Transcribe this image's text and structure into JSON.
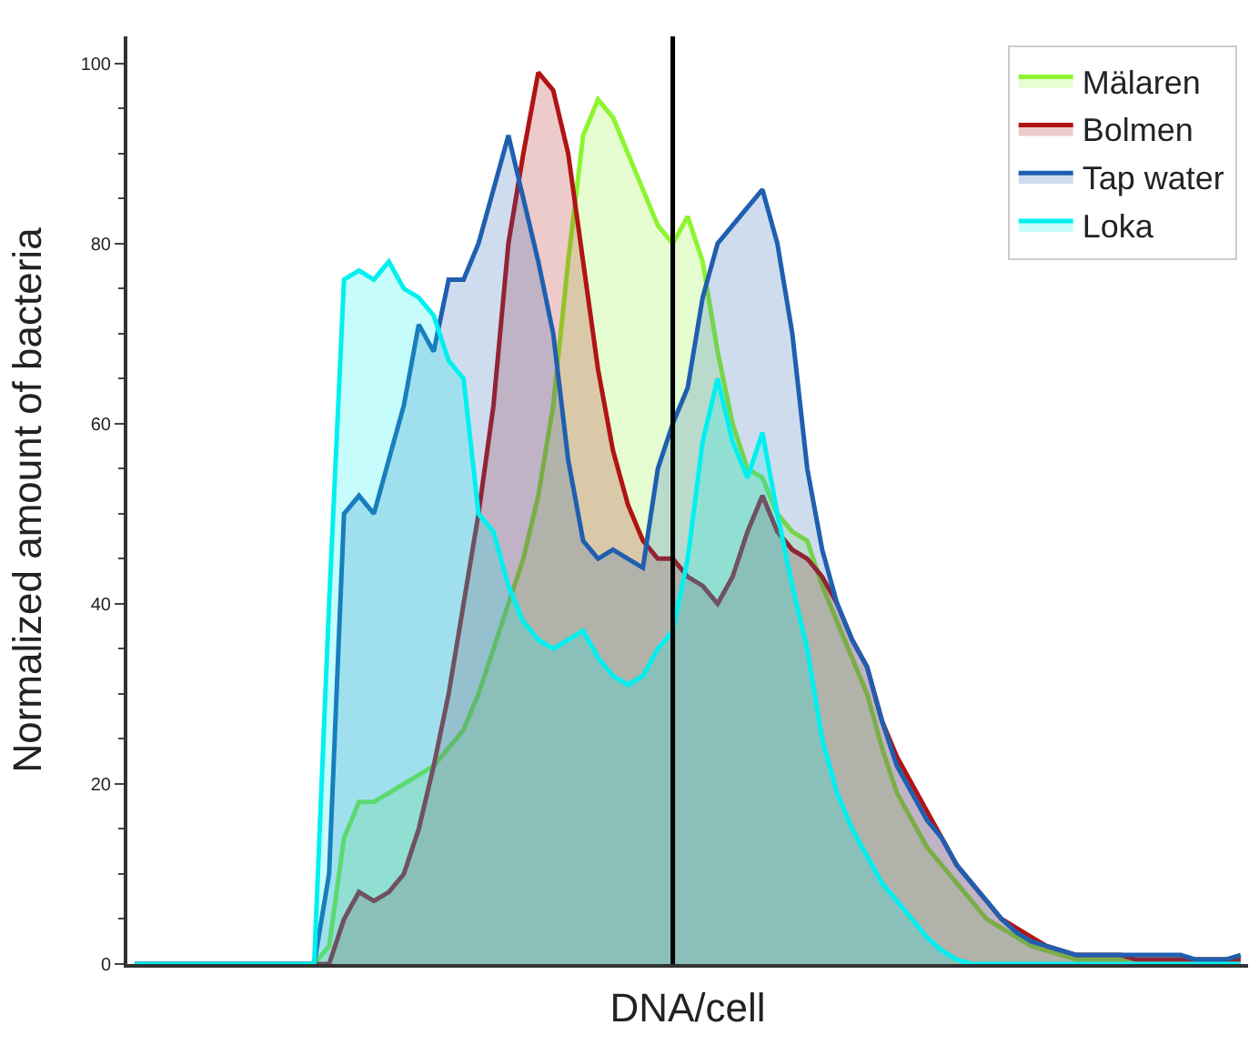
{
  "chart_data": {
    "type": "area",
    "xlabel": "DNA/cell",
    "ylabel": "Normalized amount of bacteria",
    "categories": [
      null,
      null,
      null,
      null,
      null,
      null,
      null,
      null,
      null,
      null,
      null,
      null,
      null,
      null,
      null,
      null,
      null,
      null,
      null,
      null,
      null,
      null,
      null,
      null,
      null,
      null,
      null,
      null,
      null,
      null,
      null,
      null,
      null,
      null,
      null,
      null,
      null,
      null,
      null,
      null,
      null,
      null,
      null,
      null,
      null,
      null,
      null,
      null,
      null,
      null,
      null,
      null,
      null,
      null,
      null,
      null,
      null,
      null,
      null,
      null,
      null,
      null,
      null,
      null,
      null,
      null,
      null,
      null,
      null,
      null,
      null,
      null,
      null,
      null,
      null
    ],
    "series": [
      {
        "name": "Mälaren",
        "color": "#8cf530",
        "values": [
          0,
          0,
          0,
          0,
          0,
          0,
          0,
          0,
          0,
          0,
          0,
          0,
          0,
          2,
          14,
          18,
          18,
          19,
          20,
          21,
          22,
          24,
          26,
          30,
          35,
          40,
          45,
          52,
          62,
          78,
          92,
          96,
          94,
          90,
          86,
          82,
          80,
          83,
          78,
          68,
          60,
          55,
          54,
          50,
          48,
          47,
          42,
          38,
          34,
          30,
          24,
          19,
          16,
          13,
          11,
          9,
          7,
          5,
          4,
          3,
          2,
          1.5,
          1,
          0.5,
          0.5,
          0.5,
          0.5,
          0.5,
          0.5,
          0.5,
          0.5,
          0.5,
          0.5,
          0.5,
          1
        ]
      },
      {
        "name": "Bolmen",
        "color": "#b01414",
        "values": [
          0,
          0,
          0,
          0,
          0,
          0,
          0,
          0,
          0,
          0,
          0,
          0,
          0,
          0,
          5,
          8,
          7,
          8,
          10,
          15,
          22,
          30,
          40,
          50,
          62,
          80,
          90,
          99,
          97,
          90,
          78,
          66,
          57,
          51,
          47,
          45,
          45,
          43,
          42,
          40,
          43,
          48,
          52,
          48,
          46,
          45,
          43,
          40,
          36,
          33,
          27,
          23,
          20,
          17,
          14,
          11,
          9,
          7,
          5,
          4,
          3,
          2,
          1.5,
          1,
          1,
          1,
          1,
          0.5,
          0.5,
          0.5,
          0.5,
          0.5,
          0.5,
          0.5,
          0.5
        ]
      },
      {
        "name": "Tap water",
        "color": "#1f5fb0",
        "values": [
          0,
          0,
          0,
          0,
          0,
          0,
          0,
          0,
          0,
          0,
          0,
          0,
          0,
          10,
          50,
          52,
          50,
          56,
          62,
          71,
          68,
          76,
          76,
          80,
          86,
          92,
          85,
          78,
          70,
          56,
          47,
          45,
          46,
          45,
          44,
          55,
          60,
          64,
          74,
          80,
          82,
          84,
          86,
          80,
          70,
          55,
          46,
          40,
          36,
          33,
          27,
          22,
          19,
          16,
          14,
          11,
          9,
          7,
          5,
          3.5,
          2.5,
          2,
          1.5,
          1,
          1,
          1,
          1,
          1,
          1,
          1,
          1,
          0.5,
          0.5,
          0.5,
          1
        ]
      },
      {
        "name": "Loka",
        "color": "#00f0f0",
        "values": [
          0,
          0,
          0,
          0,
          0,
          0,
          0,
          0,
          0,
          0,
          0,
          0,
          0,
          40,
          76,
          77,
          76,
          78,
          75,
          74,
          72,
          67,
          65,
          50,
          48,
          42,
          38,
          36,
          35,
          36,
          37,
          34,
          32,
          31,
          32,
          35,
          37,
          45,
          58,
          65,
          58,
          54,
          59,
          50,
          42,
          35,
          25,
          19,
          15,
          12,
          9,
          7,
          5,
          3,
          1.5,
          0.5,
          0,
          0,
          0,
          0,
          0,
          0,
          0,
          0,
          0,
          0,
          0,
          0,
          0,
          0,
          0,
          0,
          0,
          0,
          0
        ]
      }
    ],
    "ylim": [
      0,
      103
    ],
    "yticks": [
      0,
      20,
      40,
      60,
      80,
      100
    ],
    "legend": "top right",
    "tick_labels": "y"
  }
}
